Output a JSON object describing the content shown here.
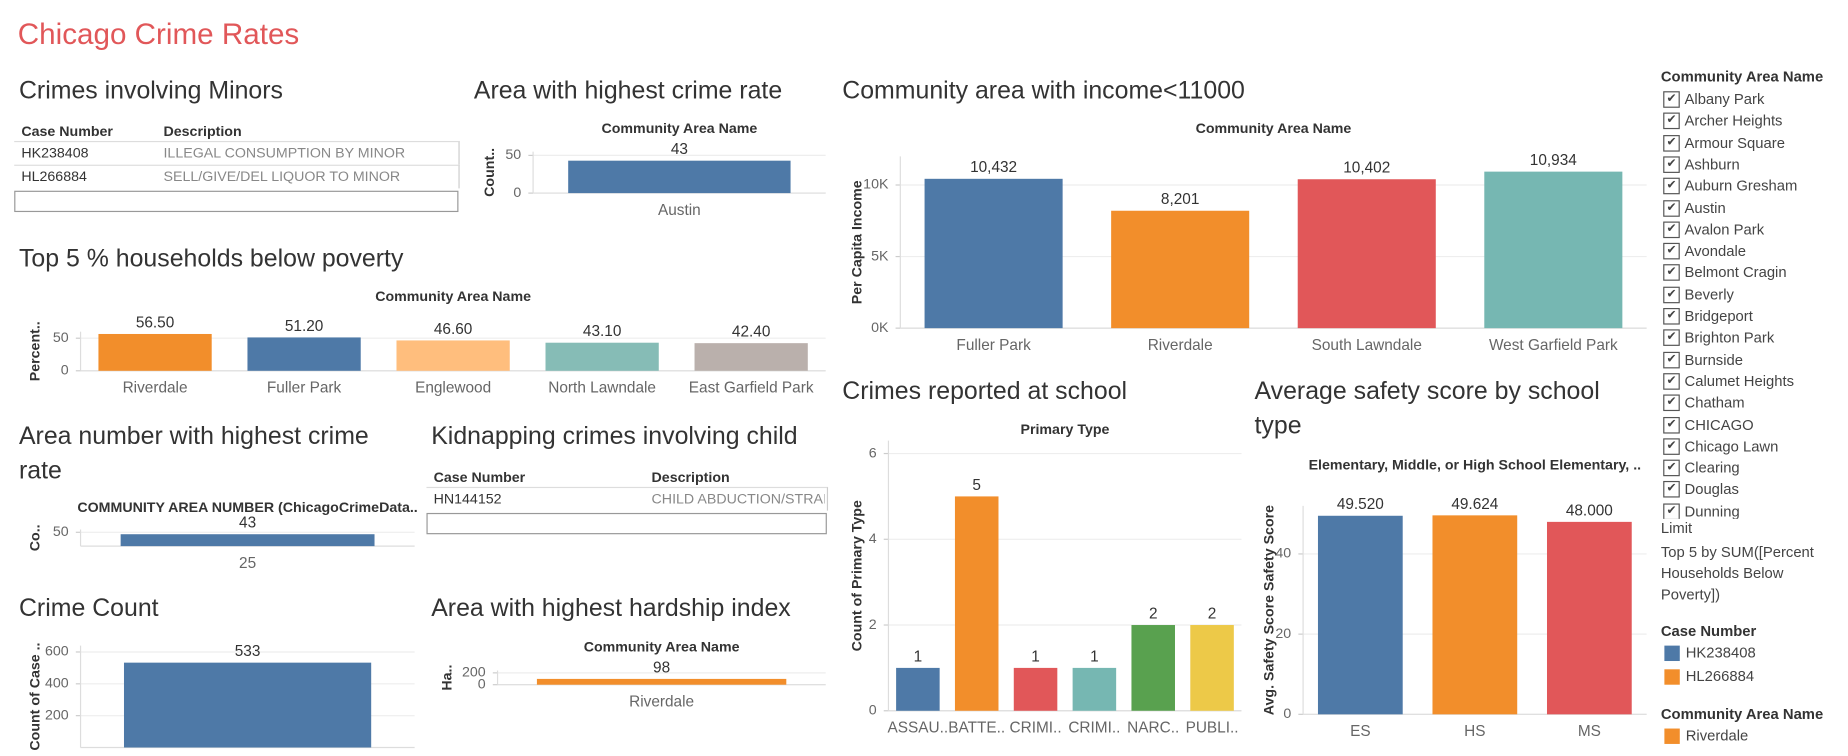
{
  "title": "Chicago Crime Rates",
  "tables": [
    {
      "title": "Crimes involving Minors",
      "columns": [
        "Case Number",
        "Description"
      ],
      "rows": [
        [
          "HK238408",
          "ILLEGAL CONSUMPTION BY MINOR"
        ],
        [
          "HL266884",
          "SELL/GIVE/DEL LIQUOR TO MINOR"
        ]
      ]
    },
    {
      "title": "Kidnapping crimes involving child",
      "columns": [
        "Case Number",
        "Description"
      ],
      "rows": [
        [
          "HN144152",
          "CHILD ABDUCTION/STRAN"
        ]
      ]
    }
  ],
  "chart_data": [
    {
      "type": "bar",
      "title": "Area with highest crime rate",
      "x_header": "Community Area Name",
      "y_label": "Count..",
      "categories": [
        "Austin"
      ],
      "values": [
        43
      ],
      "colors": [
        "#4e79a7"
      ],
      "ylim": [
        0,
        55
      ],
      "yticks": [
        0,
        50
      ],
      "grid": true
    },
    {
      "type": "bar",
      "title": "Top 5 % households below poverty",
      "x_header": "Community Area Name",
      "y_label": "Percent..",
      "categories": [
        "Riverdale",
        "Fuller Park",
        "Englewood",
        "North Lawndale",
        "East Garfield Park"
      ],
      "values": [
        56.5,
        51.2,
        46.6,
        43.1,
        42.4
      ],
      "value_labels": [
        "56.50",
        "51.20",
        "46.60",
        "43.10",
        "42.40"
      ],
      "colors": [
        "#f28e2b",
        "#4e79a7",
        "#ffbe7d",
        "#86bcb6",
        "#bab0ac"
      ],
      "ylim": [
        0,
        60
      ],
      "yticks": [
        0,
        50
      ],
      "grid": true
    },
    {
      "type": "bar",
      "title": "Community area with income<11000",
      "x_header": "Community Area Name",
      "y_label": "Per Capita Income",
      "categories": [
        "Fuller Park",
        "Riverdale",
        "South Lawndale",
        "West Garfield Park"
      ],
      "values": [
        10432,
        8201,
        10402,
        10934
      ],
      "value_labels": [
        "10,432",
        "8,201",
        "10,402",
        "10,934"
      ],
      "colors": [
        "#4e79a7",
        "#f28e2b",
        "#e15759",
        "#76b7b2"
      ],
      "ylim": [
        0,
        12000
      ],
      "yticks": [
        {
          "value": 0,
          "label": "0K"
        },
        {
          "value": 5000,
          "label": "5K"
        },
        {
          "value": 10000,
          "label": "10K"
        }
      ],
      "grid": true
    },
    {
      "type": "bar",
      "title": "Area number with highest crime rate",
      "x_header": "COMMUNITY AREA NUMBER (ChicagoCrimeData..",
      "y_label": "Co..",
      "categories": [
        "25"
      ],
      "values": [
        43
      ],
      "colors": [
        "#4e79a7"
      ],
      "ylim": [
        0,
        60
      ],
      "yticks": [
        50
      ],
      "grid": true
    },
    {
      "type": "bar",
      "title": "Crime Count",
      "y_label": "Count of Case ..",
      "categories": [
        null
      ],
      "values": [
        533
      ],
      "colors": [
        "#4e79a7"
      ],
      "ylim": [
        0,
        640
      ],
      "yticks": [
        200,
        400,
        600
      ],
      "grid": true
    },
    {
      "type": "bar",
      "title": "Area with highest hardship index",
      "x_header": "Community Area Name",
      "y_label": "Ha..",
      "categories": [
        "Riverdale"
      ],
      "values": [
        98
      ],
      "colors": [
        "#f28e2b"
      ],
      "ylim": [
        0,
        240
      ],
      "yticks": [
        0,
        200
      ],
      "grid": true
    },
    {
      "type": "bar",
      "title": "Crimes reported at school",
      "x_header": "Primary Type",
      "y_label": "Count of Primary Type",
      "categories": [
        "ASSAU..",
        "BATTE..",
        "CRIMI..",
        "CRIMI..",
        "NARC..",
        "PUBLI.."
      ],
      "values": [
        1,
        5,
        1,
        1,
        2,
        2
      ],
      "colors": [
        "#4e79a7",
        "#f28e2b",
        "#e15759",
        "#76b7b2",
        "#59a14f",
        "#edc948"
      ],
      "ylim": [
        0,
        6.3
      ],
      "yticks": [
        0,
        2,
        4,
        6
      ],
      "grid": true
    },
    {
      "type": "bar",
      "title": "Average safety score by school type",
      "x_header": "Elementary, Middle, or High School Elementary, ..",
      "y_label": "Avg. Safety Score Safety Score",
      "categories": [
        "ES",
        "HS",
        "MS"
      ],
      "values": [
        49.52,
        49.624,
        48
      ],
      "value_labels": [
        "49.520",
        "49.624",
        "48.000"
      ],
      "colors": [
        "#4e79a7",
        "#f28e2b",
        "#e15759"
      ],
      "ylim": [
        0,
        52
      ],
      "yticks": [
        0,
        20,
        40
      ],
      "grid": true
    }
  ],
  "filter": {
    "title": "Community Area Name",
    "items": [
      "Albany Park",
      "Archer Heights",
      "Armour Square",
      "Ashburn",
      "Auburn Gresham",
      "Austin",
      "Avalon Park",
      "Avondale",
      "Belmont Cragin",
      "Beverly",
      "Bridgeport",
      "Brighton Park",
      "Burnside",
      "Calumet Heights",
      "Chatham",
      "CHICAGO",
      "Chicago Lawn",
      "Clearing",
      "Douglas",
      "Dunning"
    ]
  },
  "limit": {
    "title": "Limit",
    "text": "Top 5 by SUM([Percent Households Below Poverty])"
  },
  "legends": [
    {
      "title": "Case Number",
      "items": [
        {
          "name": "HK238408",
          "color": "#4e79a7"
        },
        {
          "name": "HL266884",
          "color": "#f28e2b"
        }
      ]
    },
    {
      "title": "Community Area Name",
      "items": [
        {
          "name": "Riverdale",
          "color": "#f28e2b"
        }
      ]
    }
  ]
}
